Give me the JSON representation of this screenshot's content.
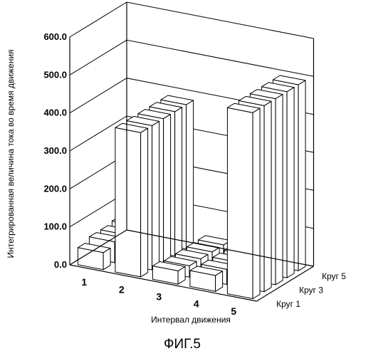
{
  "chart_data": {
    "type": "bar",
    "projection": "3d",
    "x_categories": [
      "1",
      "2",
      "3",
      "4",
      "5"
    ],
    "xlabel": "Интервал движения",
    "ylabel": "Интегрированная величина тока во время движения",
    "y_ticks": [
      "0.0",
      "100.0",
      "200.0",
      "300.0",
      "400.0",
      "500.0",
      "600.0"
    ],
    "ylim": [
      0,
      600
    ],
    "grid": true,
    "depth_ticks": [
      "Круг 1",
      "Круг 3",
      "Круг 5"
    ],
    "series": [
      {
        "values": [
          45,
          380,
          35,
          42,
          490
        ]
      },
      {
        "values": [
          55,
          380,
          30,
          40,
          490
        ]
      },
      {
        "values": [
          55,
          380,
          30,
          40,
          490
        ]
      },
      {
        "values": [
          60,
          380,
          30,
          40,
          490
        ]
      },
      {
        "values": [
          50,
          380,
          30,
          25,
          490
        ]
      }
    ]
  },
  "caption": "ФИГ.5"
}
